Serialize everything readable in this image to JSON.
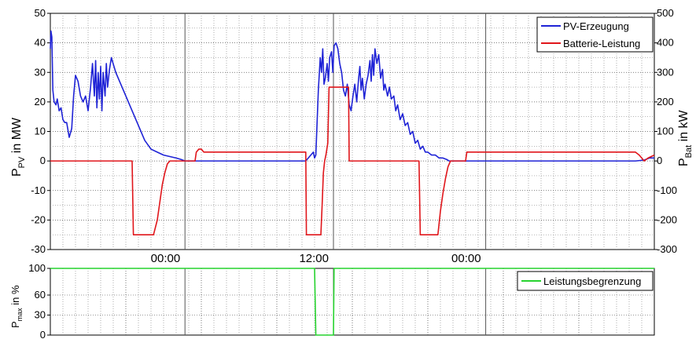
{
  "chart_data": [
    {
      "type": "line",
      "ylabel_left": {
        "main": "P",
        "sub": "PV",
        "suffix": " in MW"
      },
      "ylabel_right": {
        "main": "P",
        "sub": "Bat",
        "suffix": " in kW"
      },
      "ylim_left": [
        -30,
        50
      ],
      "ylim_right": [
        -300,
        500
      ],
      "yticks_left": [
        -30,
        -20,
        -10,
        0,
        10,
        20,
        30,
        40,
        50
      ],
      "yticks_right": [
        -300,
        -200,
        -100,
        0,
        100,
        200,
        300,
        400,
        500
      ],
      "x_range_hours": [
        0,
        48
      ],
      "time_labels": [
        {
          "t": 10.7,
          "label": "00:00"
        },
        {
          "t": 22.5,
          "label": "12:00"
        },
        {
          "t": 34.6,
          "label": "00:00"
        }
      ],
      "grid": true,
      "legend_position": "top-right",
      "colors": {
        "pv": "#1f23d6",
        "bat": "#e0161b"
      },
      "series": [
        {
          "name": "PV-Erzeugung",
          "axis": "left",
          "color": "#1f23d6",
          "points": [
            [
              0.0,
              38
            ],
            [
              0.05,
              44
            ],
            [
              0.12,
              42
            ],
            [
              0.2,
              24
            ],
            [
              0.3,
              20
            ],
            [
              0.45,
              19
            ],
            [
              0.55,
              21
            ],
            [
              0.7,
              17
            ],
            [
              0.85,
              18
            ],
            [
              1.0,
              14
            ],
            [
              1.15,
              13
            ],
            [
              1.3,
              13
            ],
            [
              1.5,
              8
            ],
            [
              1.7,
              11
            ],
            [
              1.85,
              22
            ],
            [
              2.0,
              29
            ],
            [
              2.2,
              27
            ],
            [
              2.4,
              22
            ],
            [
              2.6,
              20
            ],
            [
              2.8,
              22
            ],
            [
              3.0,
              17
            ],
            [
              3.2,
              25
            ],
            [
              3.35,
              33
            ],
            [
              3.5,
              22
            ],
            [
              3.6,
              34
            ],
            [
              3.7,
              18
            ],
            [
              3.8,
              30
            ],
            [
              3.9,
              21
            ],
            [
              4.0,
              32
            ],
            [
              4.1,
              17
            ],
            [
              4.2,
              30
            ],
            [
              4.35,
              22
            ],
            [
              4.45,
              33
            ],
            [
              4.55,
              25
            ],
            [
              4.7,
              31
            ],
            [
              4.85,
              35
            ],
            [
              5.2,
              30
            ],
            [
              5.6,
              26
            ],
            [
              6.0,
              22
            ],
            [
              6.5,
              17
            ],
            [
              7.0,
              12
            ],
            [
              7.5,
              7
            ],
            [
              8.0,
              4
            ],
            [
              8.5,
              3
            ],
            [
              9.0,
              2
            ],
            [
              9.5,
              1.5
            ],
            [
              10.0,
              1
            ],
            [
              10.4,
              0.5
            ],
            [
              10.7,
              0
            ],
            [
              11.5,
              0
            ],
            [
              13,
              0
            ],
            [
              15,
              0
            ],
            [
              17,
              0
            ],
            [
              19,
              0
            ],
            [
              20.3,
              0
            ],
            [
              20.5,
              1
            ],
            [
              20.7,
              2
            ],
            [
              20.9,
              3
            ],
            [
              21.0,
              1
            ],
            [
              21.1,
              2
            ],
            [
              21.3,
              24
            ],
            [
              21.45,
              35
            ],
            [
              21.55,
              30
            ],
            [
              21.65,
              38
            ],
            [
              21.75,
              26
            ],
            [
              21.85,
              28
            ],
            [
              22.0,
              33
            ],
            [
              22.1,
              27
            ],
            [
              22.2,
              35
            ],
            [
              22.35,
              37
            ],
            [
              22.45,
              30
            ],
            [
              22.55,
              39
            ],
            [
              22.7,
              40
            ],
            [
              22.85,
              38
            ],
            [
              23.0,
              33
            ],
            [
              23.15,
              30
            ],
            [
              23.3,
              24
            ],
            [
              23.45,
              22
            ],
            [
              23.6,
              26
            ],
            [
              23.75,
              19
            ],
            [
              23.9,
              17
            ],
            [
              24.05,
              22
            ],
            [
              24.2,
              26
            ],
            [
              24.35,
              20
            ],
            [
              24.5,
              28
            ],
            [
              24.6,
              32
            ],
            [
              24.7,
              24
            ],
            [
              24.8,
              28
            ],
            [
              24.95,
              21
            ],
            [
              25.1,
              26
            ],
            [
              25.25,
              29
            ],
            [
              25.4,
              34
            ],
            [
              25.5,
              27
            ],
            [
              25.6,
              36
            ],
            [
              25.7,
              29
            ],
            [
              25.8,
              38
            ],
            [
              25.95,
              33
            ],
            [
              26.1,
              36
            ],
            [
              26.25,
              28
            ],
            [
              26.4,
              31
            ],
            [
              26.5,
              24
            ],
            [
              26.6,
              26
            ],
            [
              26.8,
              22
            ],
            [
              26.95,
              25
            ],
            [
              27.1,
              21
            ],
            [
              27.3,
              22
            ],
            [
              27.45,
              17
            ],
            [
              27.6,
              19
            ],
            [
              27.8,
              14
            ],
            [
              28.0,
              16
            ],
            [
              28.2,
              12
            ],
            [
              28.4,
              13
            ],
            [
              28.6,
              9
            ],
            [
              28.8,
              10
            ],
            [
              29.0,
              6
            ],
            [
              29.2,
              7
            ],
            [
              29.4,
              4
            ],
            [
              29.6,
              5
            ],
            [
              29.8,
              3
            ],
            [
              30.0,
              3
            ],
            [
              30.3,
              2
            ],
            [
              30.6,
              2
            ],
            [
              30.9,
              1
            ],
            [
              31.2,
              1
            ],
            [
              31.5,
              0.5
            ],
            [
              31.7,
              0
            ],
            [
              33,
              0
            ],
            [
              35,
              0
            ],
            [
              37,
              0
            ],
            [
              39,
              0
            ],
            [
              41,
              0
            ],
            [
              43,
              0
            ],
            [
              45,
              0
            ],
            [
              46.5,
              0
            ],
            [
              47.2,
              0.3
            ],
            [
              47.6,
              1
            ],
            [
              48,
              1
            ]
          ]
        },
        {
          "name": "Batterie-Leistung",
          "axis": "right",
          "color": "#e0161b",
          "points": [
            [
              0,
              0
            ],
            [
              6.5,
              0
            ],
            [
              6.6,
              -250
            ],
            [
              8.2,
              -250
            ],
            [
              8.5,
              -200
            ],
            [
              8.7,
              -140
            ],
            [
              8.9,
              -80
            ],
            [
              9.1,
              -40
            ],
            [
              9.3,
              -10
            ],
            [
              9.5,
              0
            ],
            [
              11.5,
              0
            ],
            [
              11.6,
              30
            ],
            [
              11.8,
              40
            ],
            [
              12.0,
              40
            ],
            [
              12.2,
              30
            ],
            [
              20.3,
              30
            ],
            [
              20.35,
              -250
            ],
            [
              21.5,
              -250
            ],
            [
              21.6,
              -150
            ],
            [
              21.7,
              -40
            ],
            [
              21.8,
              0
            ],
            [
              21.9,
              20
            ],
            [
              22.05,
              60
            ],
            [
              22.15,
              250
            ],
            [
              23.7,
              250
            ],
            [
              23.75,
              0
            ],
            [
              29.3,
              0
            ],
            [
              29.4,
              -250
            ],
            [
              30.8,
              -250
            ],
            [
              31.0,
              -170
            ],
            [
              31.2,
              -110
            ],
            [
              31.4,
              -60
            ],
            [
              31.6,
              -20
            ],
            [
              31.8,
              0
            ],
            [
              33.0,
              0
            ],
            [
              33.1,
              30
            ],
            [
              34,
              30
            ],
            [
              36,
              30
            ],
            [
              40,
              30
            ],
            [
              44,
              30
            ],
            [
              46.5,
              30
            ],
            [
              46.8,
              20
            ],
            [
              47.2,
              0
            ],
            [
              47.5,
              10
            ],
            [
              48,
              20
            ]
          ]
        }
      ]
    },
    {
      "type": "line",
      "ylabel": {
        "main": "P",
        "sub": "max",
        "suffix": " in %"
      },
      "ylim": [
        0,
        100
      ],
      "yticks": [
        0,
        30,
        60,
        100
      ],
      "x_range_hours": [
        0,
        48
      ],
      "grid": true,
      "legend_position": "right",
      "series": [
        {
          "name": "Leistungsbegrenzung",
          "color": "#27d32f",
          "points": [
            [
              0,
              100
            ],
            [
              21.0,
              100
            ],
            [
              21.1,
              0
            ],
            [
              22.5,
              0
            ],
            [
              22.55,
              100
            ],
            [
              48,
              100
            ]
          ]
        }
      ]
    }
  ]
}
